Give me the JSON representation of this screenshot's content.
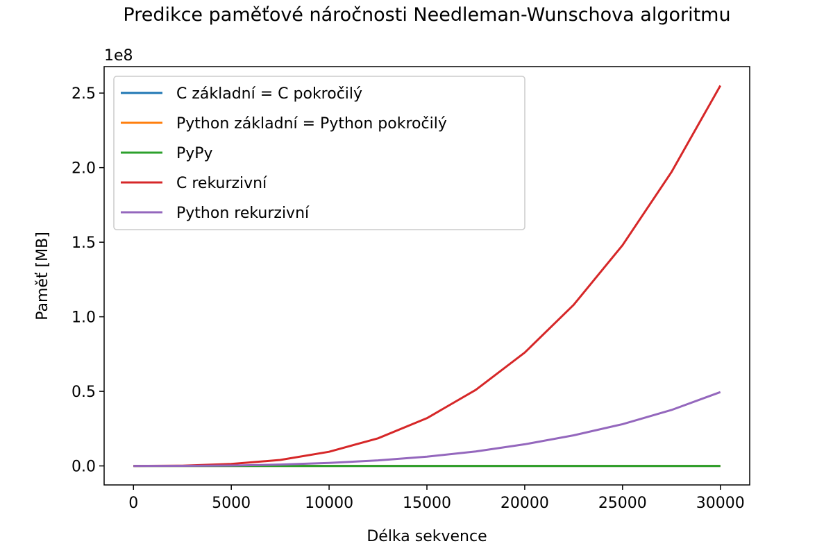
{
  "chart_data": {
    "type": "line",
    "title": "Predikce paměťové náročnosti Needleman-Wunschova algoritmu",
    "xlabel": "Délka sekvence",
    "ylabel": "Paměť [MB]",
    "y_offset_label": "1e8",
    "xlim": [
      -1500,
      31500
    ],
    "ylim": [
      -12750000,
      267750000
    ],
    "x_ticks": [
      0,
      5000,
      10000,
      15000,
      20000,
      25000,
      30000
    ],
    "x_tick_labels": [
      "0",
      "5000",
      "10000",
      "15000",
      "20000",
      "25000",
      "30000"
    ],
    "y_ticks": [
      0,
      50000000,
      100000000,
      150000000,
      200000000,
      250000000
    ],
    "y_tick_labels": [
      "0.0",
      "0.5",
      "1.0",
      "1.5",
      "2.0",
      "2.5"
    ],
    "grid": false,
    "legend_position": "top-left",
    "series": [
      {
        "name": "C základní = C pokročilý",
        "color": "#1f77b4",
        "x": [
          0,
          5000,
          10000,
          15000,
          20000,
          25000,
          30000
        ],
        "values": [
          0,
          0,
          0,
          0,
          0,
          0,
          0
        ]
      },
      {
        "name": "Python základní = Python pokročilý",
        "color": "#ff7f0e",
        "x": [
          0,
          5000,
          10000,
          15000,
          20000,
          25000,
          30000
        ],
        "values": [
          0,
          0,
          0,
          0,
          0,
          0,
          0
        ]
      },
      {
        "name": "PyPy",
        "color": "#2ca02c",
        "x": [
          0,
          5000,
          10000,
          15000,
          20000,
          25000,
          30000
        ],
        "values": [
          0,
          0,
          0,
          0,
          0,
          0,
          0
        ]
      },
      {
        "name": "C rekurzivní",
        "color": "#d62728",
        "x": [
          0,
          2500,
          5000,
          7500,
          10000,
          12500,
          15000,
          17500,
          20000,
          22500,
          25000,
          27500,
          30000
        ],
        "values": [
          0,
          150000,
          1300000,
          4000000,
          9500000,
          18500000,
          32000000,
          51000000,
          76000000,
          108000000,
          148000000,
          197000000,
          255000000
        ]
      },
      {
        "name": "Python rekurzivní",
        "color": "#9467bd",
        "x": [
          0,
          2500,
          5000,
          7500,
          10000,
          12500,
          15000,
          17500,
          20000,
          22500,
          25000,
          27500,
          30000
        ],
        "values": [
          0,
          40000,
          280000,
          900000,
          2000000,
          3700000,
          6200000,
          9700000,
          14500000,
          20500000,
          28000000,
          37500000,
          49500000
        ]
      }
    ]
  }
}
